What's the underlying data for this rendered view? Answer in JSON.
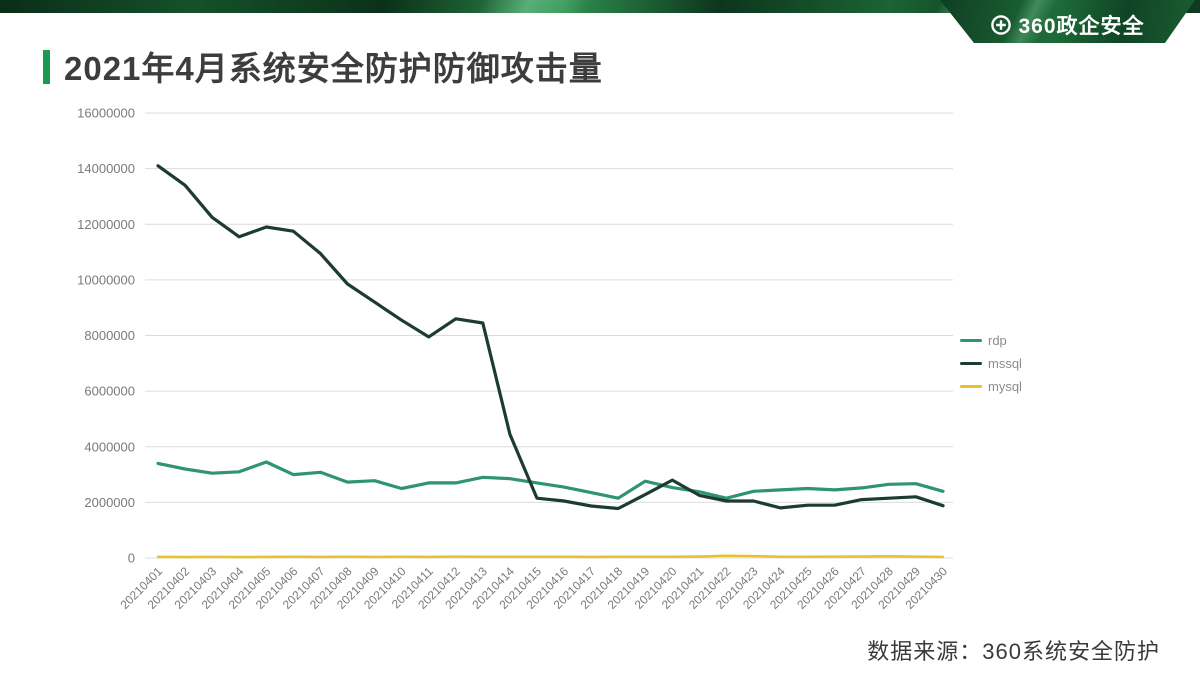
{
  "brand": {
    "logo_text": "360政企安全",
    "logo_icon": "plus-circle-icon"
  },
  "header": {
    "title": "2021年4月系统安全防护防御攻击量",
    "accent_color": "#1d9a4f"
  },
  "footer": {
    "source": "数据来源：360系统安全防护"
  },
  "chart_data": {
    "type": "line",
    "title": "2021年4月系统安全防护防御攻击量",
    "xlabel": "",
    "ylabel": "",
    "ylim": [
      0,
      16000000
    ],
    "y_ticks": [
      0,
      2000000,
      4000000,
      6000000,
      8000000,
      10000000,
      12000000,
      14000000,
      16000000
    ],
    "grid": true,
    "legend_position": "right",
    "x": [
      "20210401",
      "20210402",
      "20210403",
      "20210404",
      "20210405",
      "20210406",
      "20210407",
      "20210408",
      "20210409",
      "20210410",
      "20210411",
      "20210412",
      "20210413",
      "20210414",
      "20210415",
      "20210416",
      "20210417",
      "20210418",
      "20210419",
      "20210420",
      "20210421",
      "20210422",
      "20210423",
      "20210424",
      "20210425",
      "20210426",
      "20210427",
      "20210428",
      "20210429",
      "20210430"
    ],
    "series": [
      {
        "name": "rdp",
        "color": "#2e9471",
        "values": [
          3400000,
          3200000,
          3050000,
          3100000,
          3450000,
          3000000,
          3080000,
          2730000,
          2780000,
          2500000,
          2700000,
          2700000,
          2900000,
          2850000,
          2700000,
          2550000,
          2350000,
          2150000,
          2760000,
          2530000,
          2380000,
          2150000,
          2400000,
          2450000,
          2500000,
          2450000,
          2520000,
          2650000,
          2670000,
          2400000
        ]
      },
      {
        "name": "mssql",
        "color": "#1c3c2e",
        "values": [
          14100000,
          13400000,
          12250000,
          11550000,
          11900000,
          11750000,
          10950000,
          9850000,
          9200000,
          8550000,
          7950000,
          8600000,
          8450000,
          4450000,
          2150000,
          2050000,
          1870000,
          1780000,
          2280000,
          2800000,
          2250000,
          2050000,
          2050000,
          1800000,
          1900000,
          1900000,
          2100000,
          2150000,
          2200000,
          1880000
        ]
      },
      {
        "name": "mysql",
        "color": "#e7c327",
        "values": [
          40000,
          35000,
          38000,
          36000,
          40000,
          42000,
          38000,
          45000,
          40000,
          42000,
          38000,
          50000,
          45000,
          48000,
          42000,
          45000,
          40000,
          42000,
          45000,
          48000,
          55000,
          80000,
          70000,
          45000,
          48000,
          50000,
          55000,
          60000,
          52000,
          40000
        ]
      }
    ]
  }
}
